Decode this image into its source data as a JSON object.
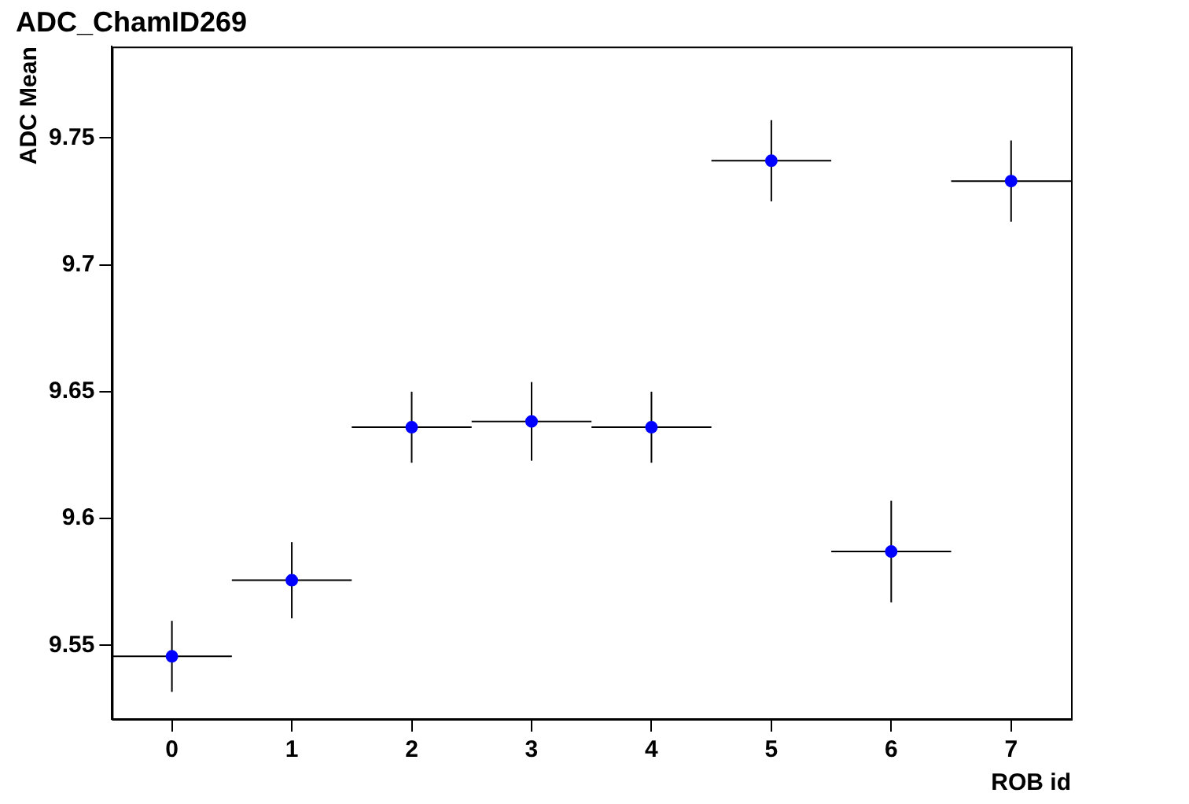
{
  "chart_data": {
    "type": "scatter",
    "title": "ADC_ChamID269",
    "xlabel": "ROB id",
    "ylabel": "ADC Mean",
    "x": [
      0,
      1,
      2,
      3,
      4,
      5,
      6,
      7
    ],
    "series": [
      {
        "color": "#0000ff",
        "values": [
          9.5457,
          9.5757,
          9.636,
          9.6383,
          9.636,
          9.741,
          9.587,
          9.733
        ],
        "errors": [
          0.014,
          0.015,
          0.014,
          0.0155,
          0.014,
          0.016,
          0.02,
          0.016
        ],
        "xerrors": [
          0.5,
          0.5,
          0.5,
          0.5,
          0.5,
          0.5,
          0.5,
          0.5
        ]
      }
    ],
    "xlim": [
      -0.5,
      7.5
    ],
    "xticks": [
      0,
      1,
      2,
      3,
      4,
      5,
      6,
      7
    ],
    "ylim": [
      9.521,
      9.786
    ],
    "yticks": [
      9.55,
      9.6,
      9.65,
      9.7,
      9.75
    ],
    "grid": false,
    "legend": false,
    "marker": "circle"
  }
}
